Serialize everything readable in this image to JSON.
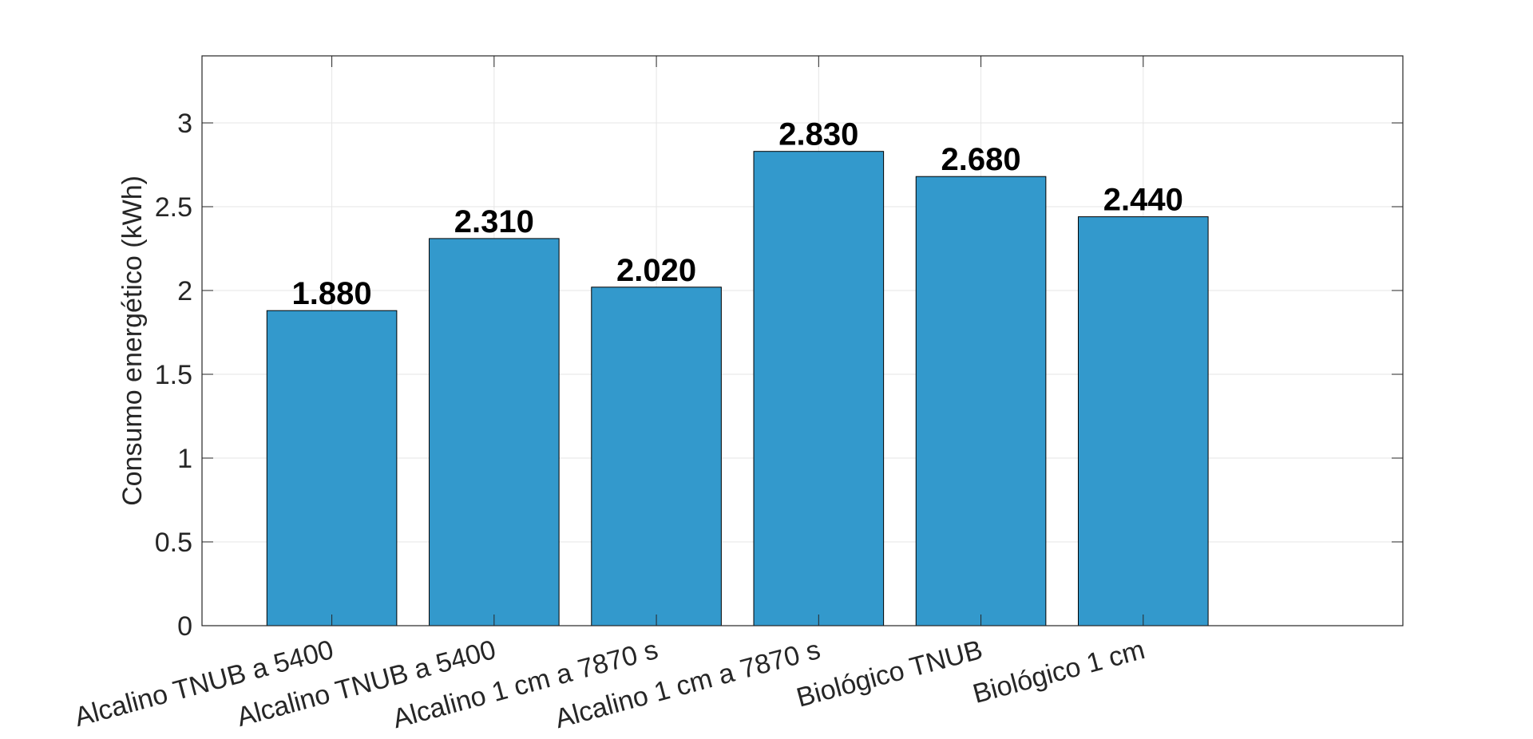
{
  "chart_data": {
    "type": "bar",
    "title": "",
    "xlabel": "",
    "ylabel": "Consumo energético (kWh)",
    "categories": [
      "Alcalino TNUB a 5400",
      "Alcalino TNUB a 5400",
      "Alcalino 1 cm a 7870 s",
      "Alcalino 1 cm a 7870 s",
      "Biológico TNUB",
      "Biológico 1 cm"
    ],
    "values": [
      1.88,
      2.31,
      2.02,
      2.83,
      2.68,
      2.44
    ],
    "data_labels": [
      "1.880",
      "2.310",
      "2.020",
      "2.830",
      "2.680",
      "2.440"
    ],
    "ylim": [
      0,
      3.4
    ],
    "yticks": [
      0,
      0.5,
      1,
      1.5,
      2,
      2.5,
      3
    ],
    "ytick_labels": [
      "0",
      "0.5",
      "1",
      "1.5",
      "2",
      "2.5",
      "3"
    ],
    "xlim": [
      0.2,
      7.6
    ],
    "grid": true,
    "legend": "none",
    "bar_color": "#3399cc",
    "bar_edge_color": "#000000",
    "grid_color": "#e6e6e6",
    "axis_color": "#262626"
  }
}
